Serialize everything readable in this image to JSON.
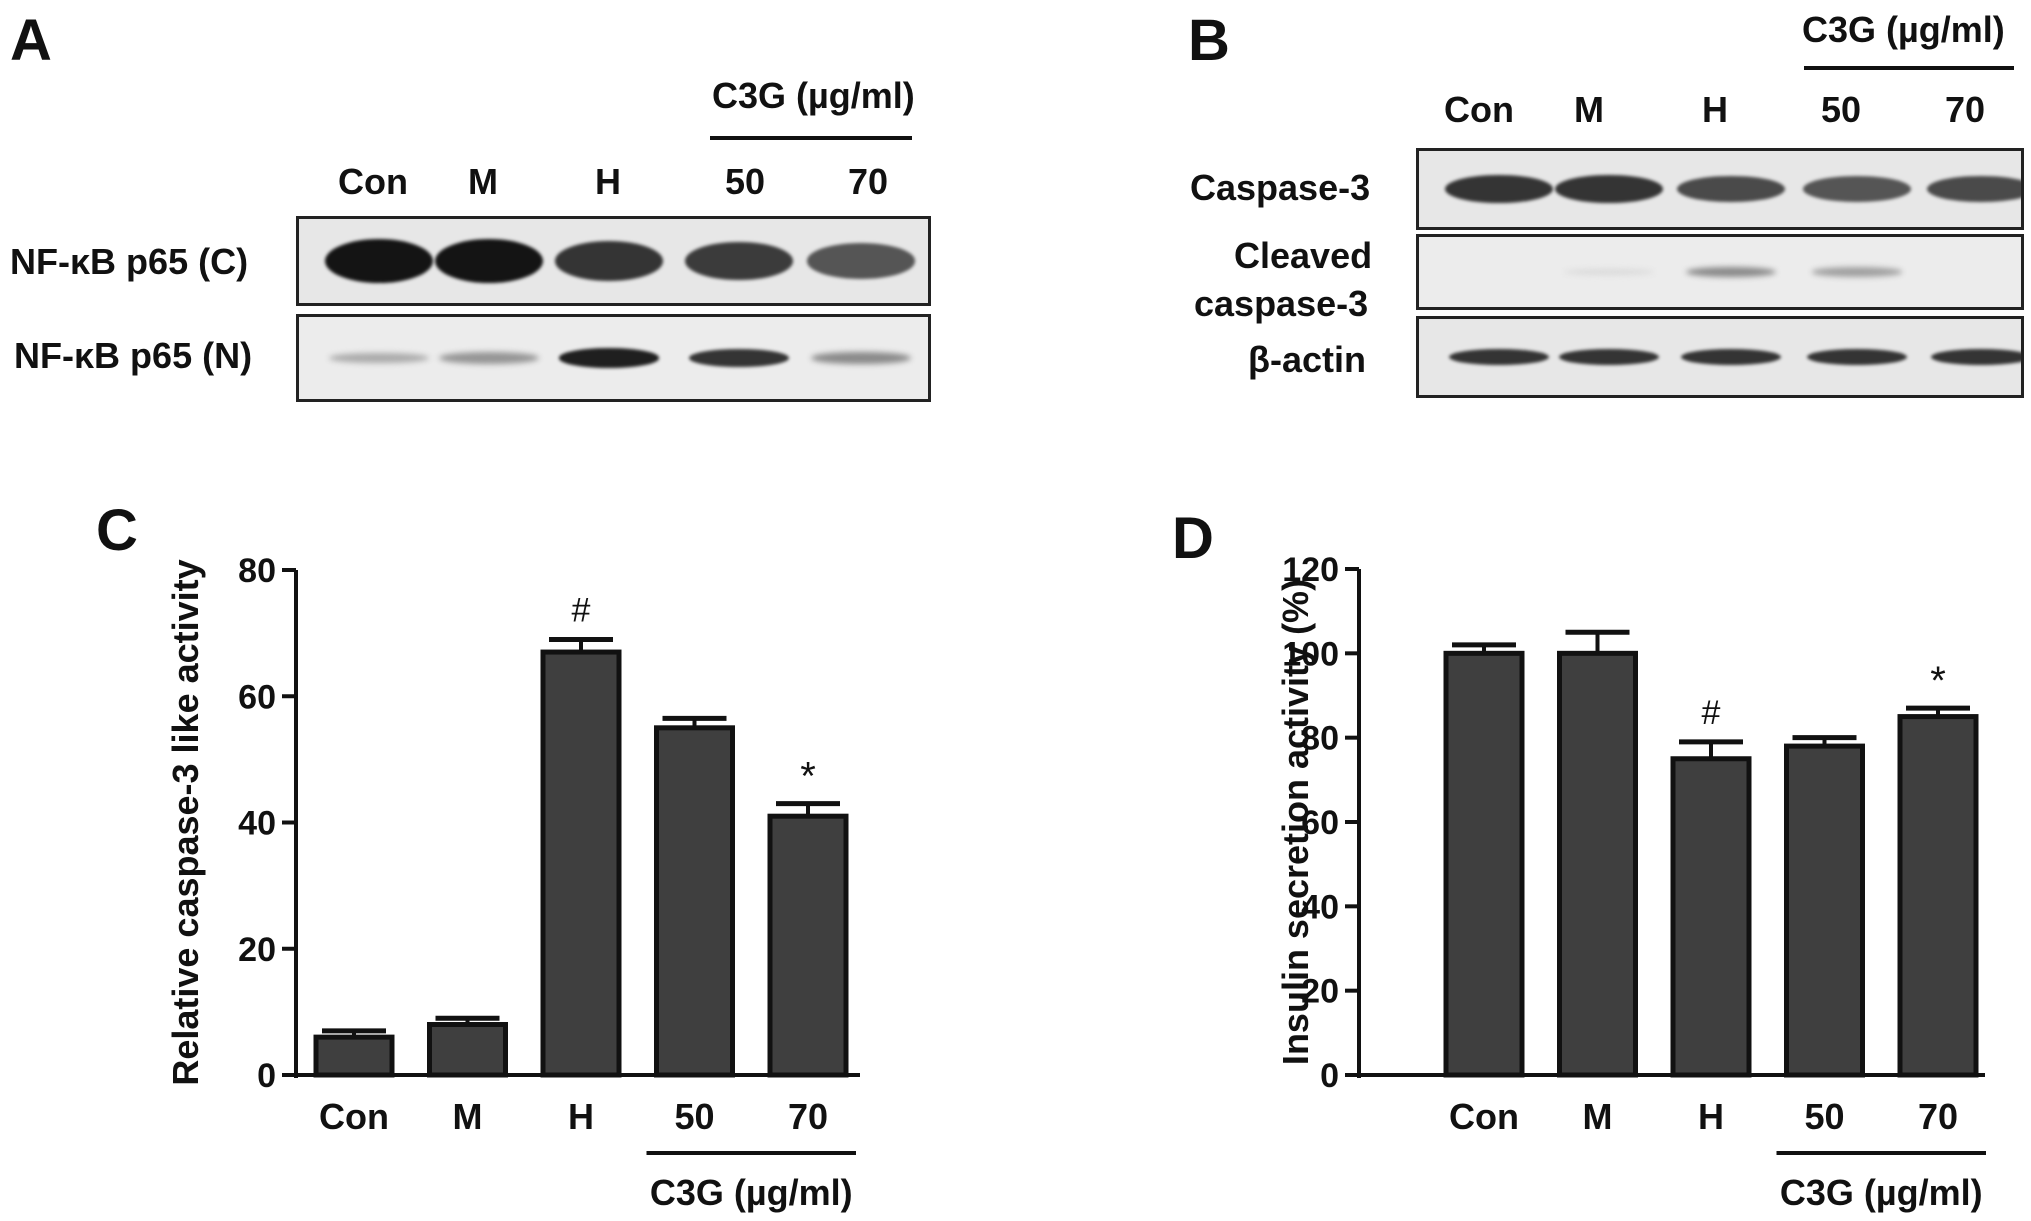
{
  "panel_a": {
    "letter": "A",
    "group_label": "C3G (µg/ml)",
    "lanes": [
      "Con",
      "M",
      "H",
      "50",
      "70"
    ],
    "rows": [
      {
        "label": "NF-κB p65 (C)",
        "intensity": [
          1.0,
          1.0,
          0.85,
          0.82,
          0.7
        ]
      },
      {
        "label": "NF-κB p65 (N)",
        "intensity": [
          0.3,
          0.4,
          0.95,
          0.85,
          0.45
        ]
      }
    ]
  },
  "panel_b": {
    "letter": "B",
    "group_label": "C3G (µg/ml)",
    "lanes": [
      "Con",
      "M",
      "H",
      "50",
      "70"
    ],
    "rows": [
      {
        "label": "Caspase-3",
        "intensity": [
          0.85,
          0.85,
          0.75,
          0.7,
          0.75
        ]
      },
      {
        "label_line1": "Cleaved",
        "label_line2": "caspase-3",
        "intensity": [
          0.0,
          0.08,
          0.45,
          0.35,
          0.0
        ]
      },
      {
        "label": "β-actin",
        "intensity": [
          0.85,
          0.85,
          0.85,
          0.85,
          0.85
        ]
      }
    ]
  },
  "chart_data": [
    {
      "panel": "C",
      "type": "bar",
      "categories": [
        "Con",
        "M",
        "H",
        "50",
        "70"
      ],
      "values": [
        6,
        8,
        67,
        55,
        41
      ],
      "errors": [
        1,
        1,
        2,
        1.5,
        2
      ],
      "annotations": [
        "",
        "",
        "#",
        "",
        "*"
      ],
      "ylabel": "Relative caspase-3 like activity",
      "ylim": [
        0,
        80
      ],
      "yticks": [
        0,
        20,
        40,
        60,
        80
      ],
      "group_label": "C3G (µg/ml)",
      "bar_color": "#3f3f3f"
    },
    {
      "panel": "D",
      "type": "bar",
      "categories": [
        "Con",
        "M",
        "H",
        "50",
        "70"
      ],
      "values": [
        100,
        100,
        75,
        78,
        85
      ],
      "errors": [
        2,
        5,
        4,
        2,
        2
      ],
      "annotations": [
        "",
        "",
        "#",
        "",
        "*"
      ],
      "ylabel": "Insulin secretion activity (%)",
      "ylim": [
        0,
        120
      ],
      "yticks": [
        0,
        20,
        40,
        60,
        80,
        100,
        120
      ],
      "group_label": "C3G (µg/ml)",
      "bar_color": "#3f3f3f"
    }
  ]
}
